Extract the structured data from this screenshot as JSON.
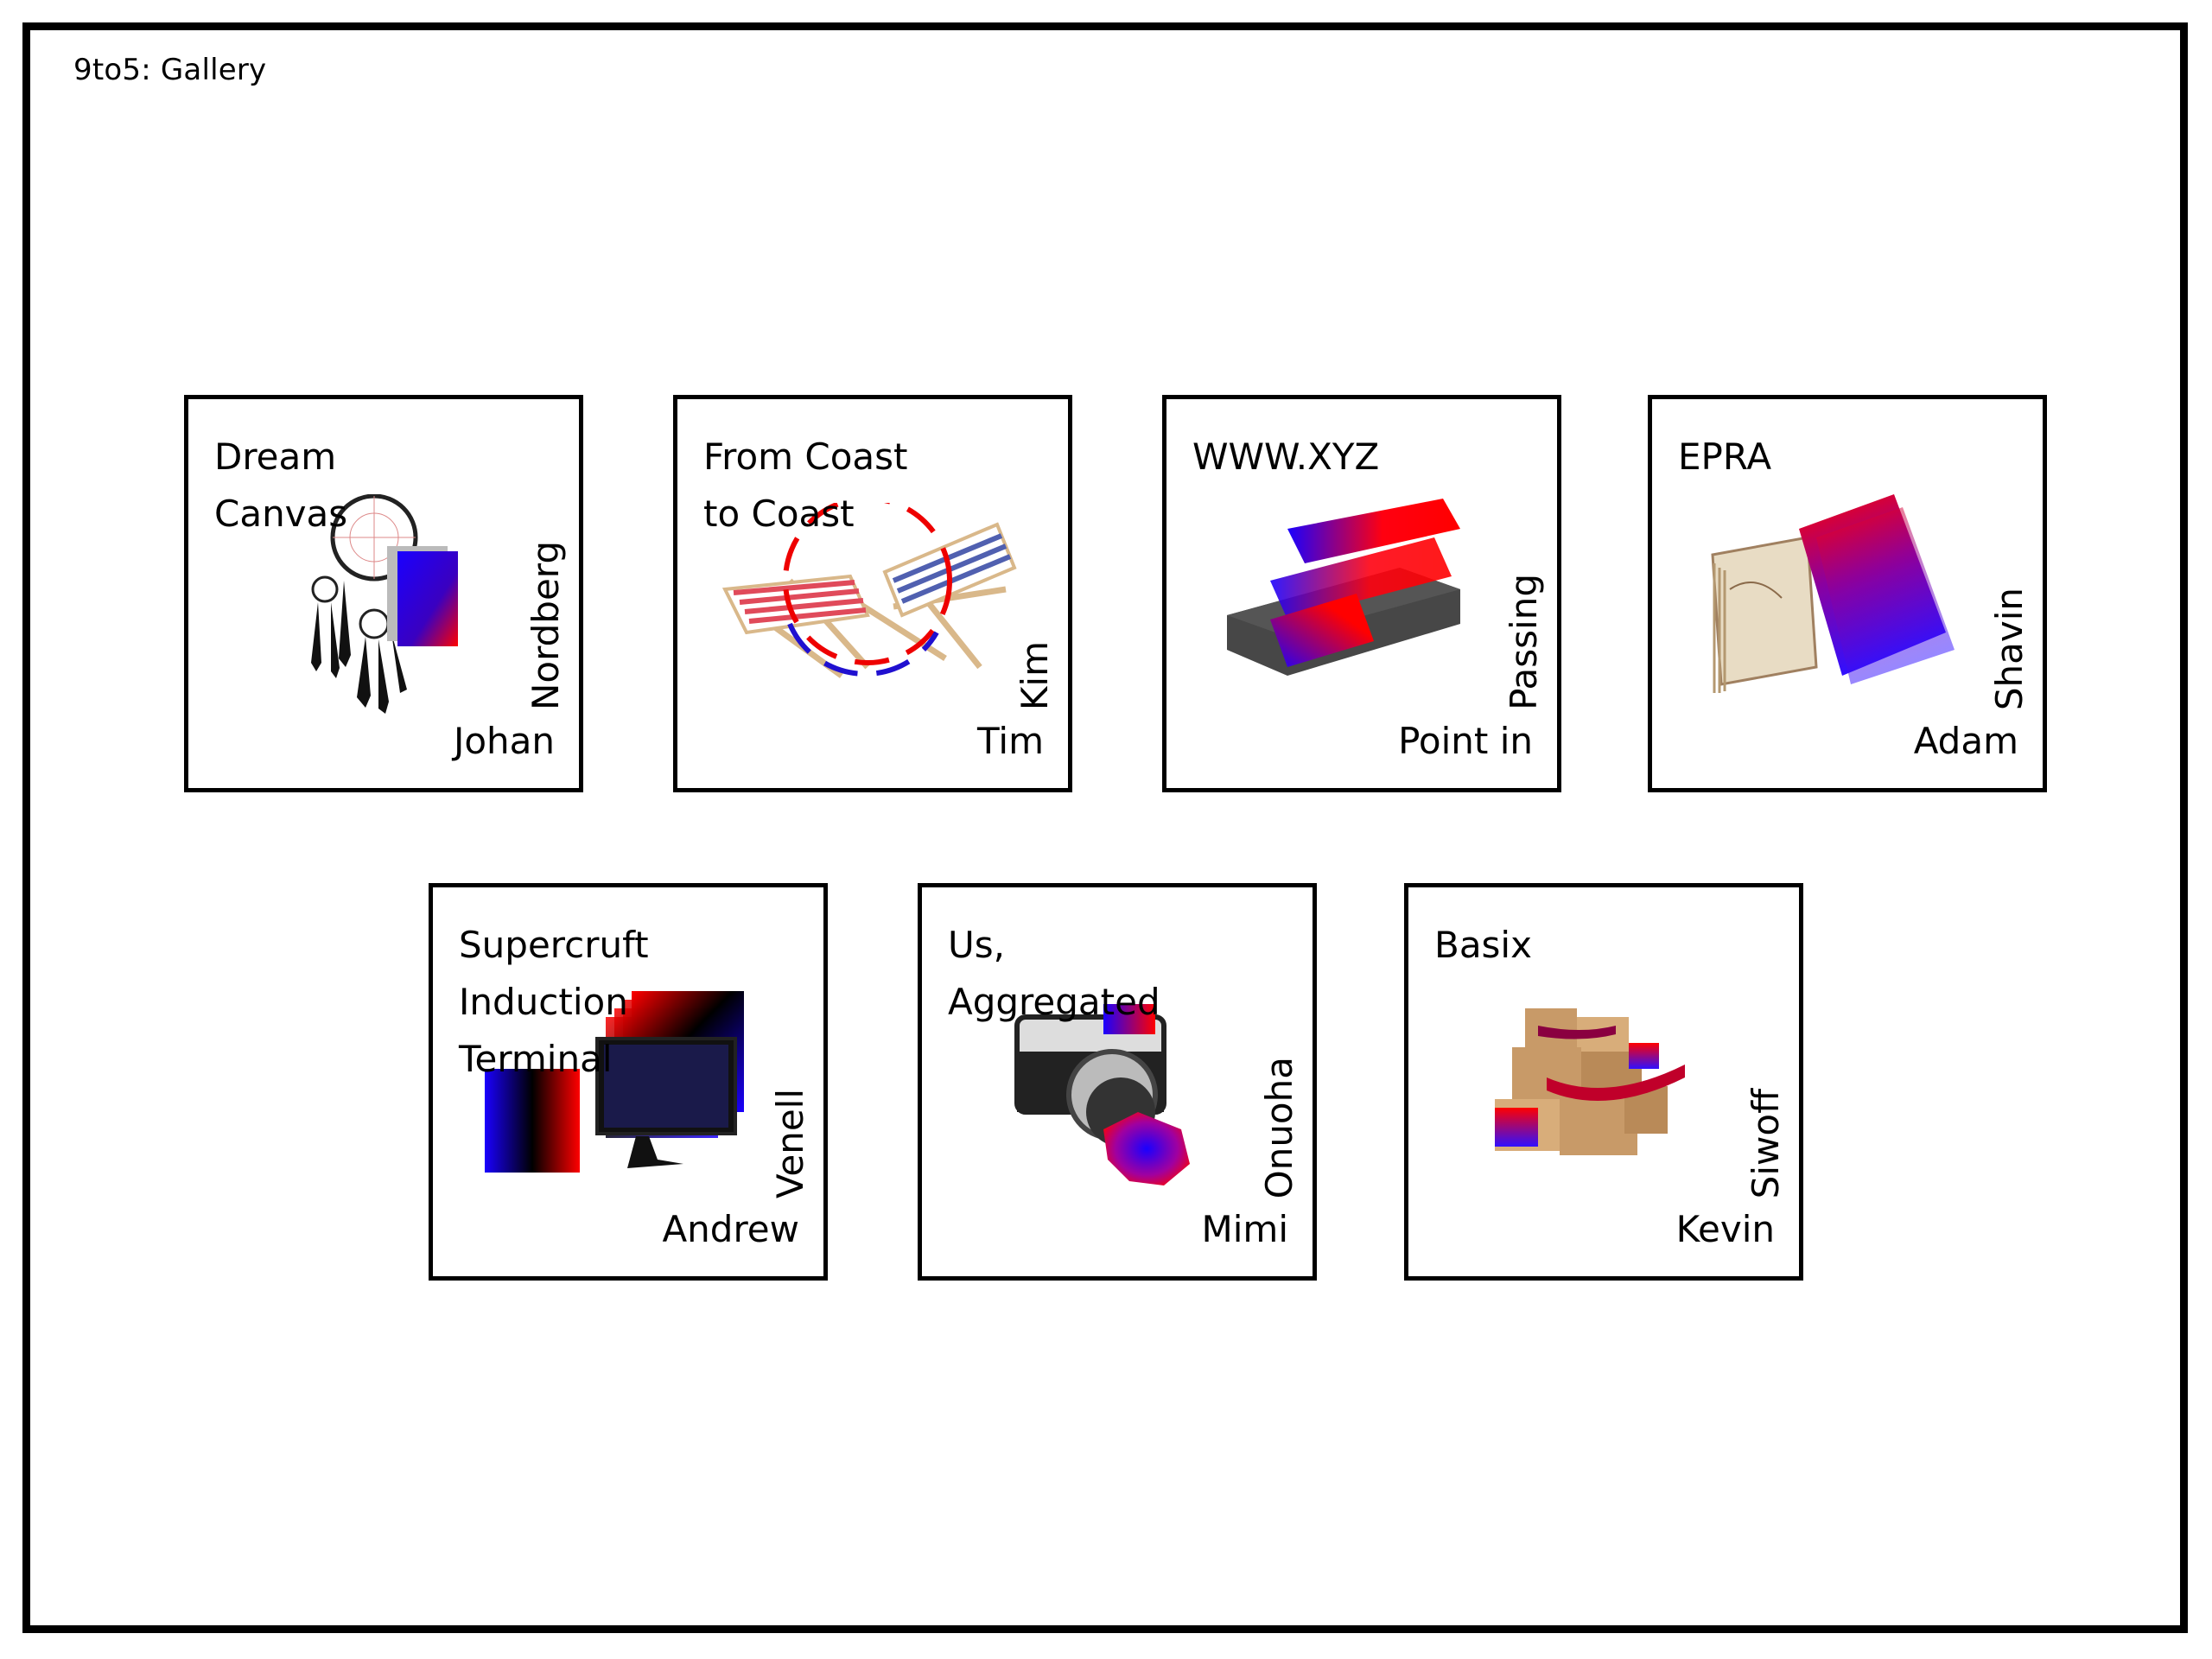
{
  "site": {
    "title": "9to5: Gallery"
  },
  "colors": {
    "accent_red": "#ff0000",
    "accent_blue": "#1a00ff",
    "border": "#000000",
    "background": "#ffffff"
  },
  "cards": [
    {
      "title": "Dream\nCanvas",
      "first_name": "Johan",
      "last_name": "Nordberg",
      "art": "dreamcatcher-icon"
    },
    {
      "title": "From Coast\nto Coast",
      "first_name": "Tim",
      "last_name": "Kim",
      "art": "beach-chairs-icon"
    },
    {
      "title": "WWW.XYZ",
      "first_name": "Point in",
      "last_name": "Passing",
      "art": "vhs-cassette-icon"
    },
    {
      "title": "EPRA",
      "first_name": "Adam",
      "last_name": "Shavin",
      "art": "old-book-icon"
    },
    {
      "title": "Supercruft\nInduction\nTerminal",
      "first_name": "Andrew",
      "last_name": "Venell",
      "art": "monitor-icon"
    },
    {
      "title": "Us,\nAggregated",
      "first_name": "Mimi",
      "last_name": "Onuoha",
      "art": "camera-icon"
    },
    {
      "title": "Basix",
      "first_name": "Kevin",
      "last_name": "Siwoff",
      "art": "boxes-icon"
    }
  ]
}
